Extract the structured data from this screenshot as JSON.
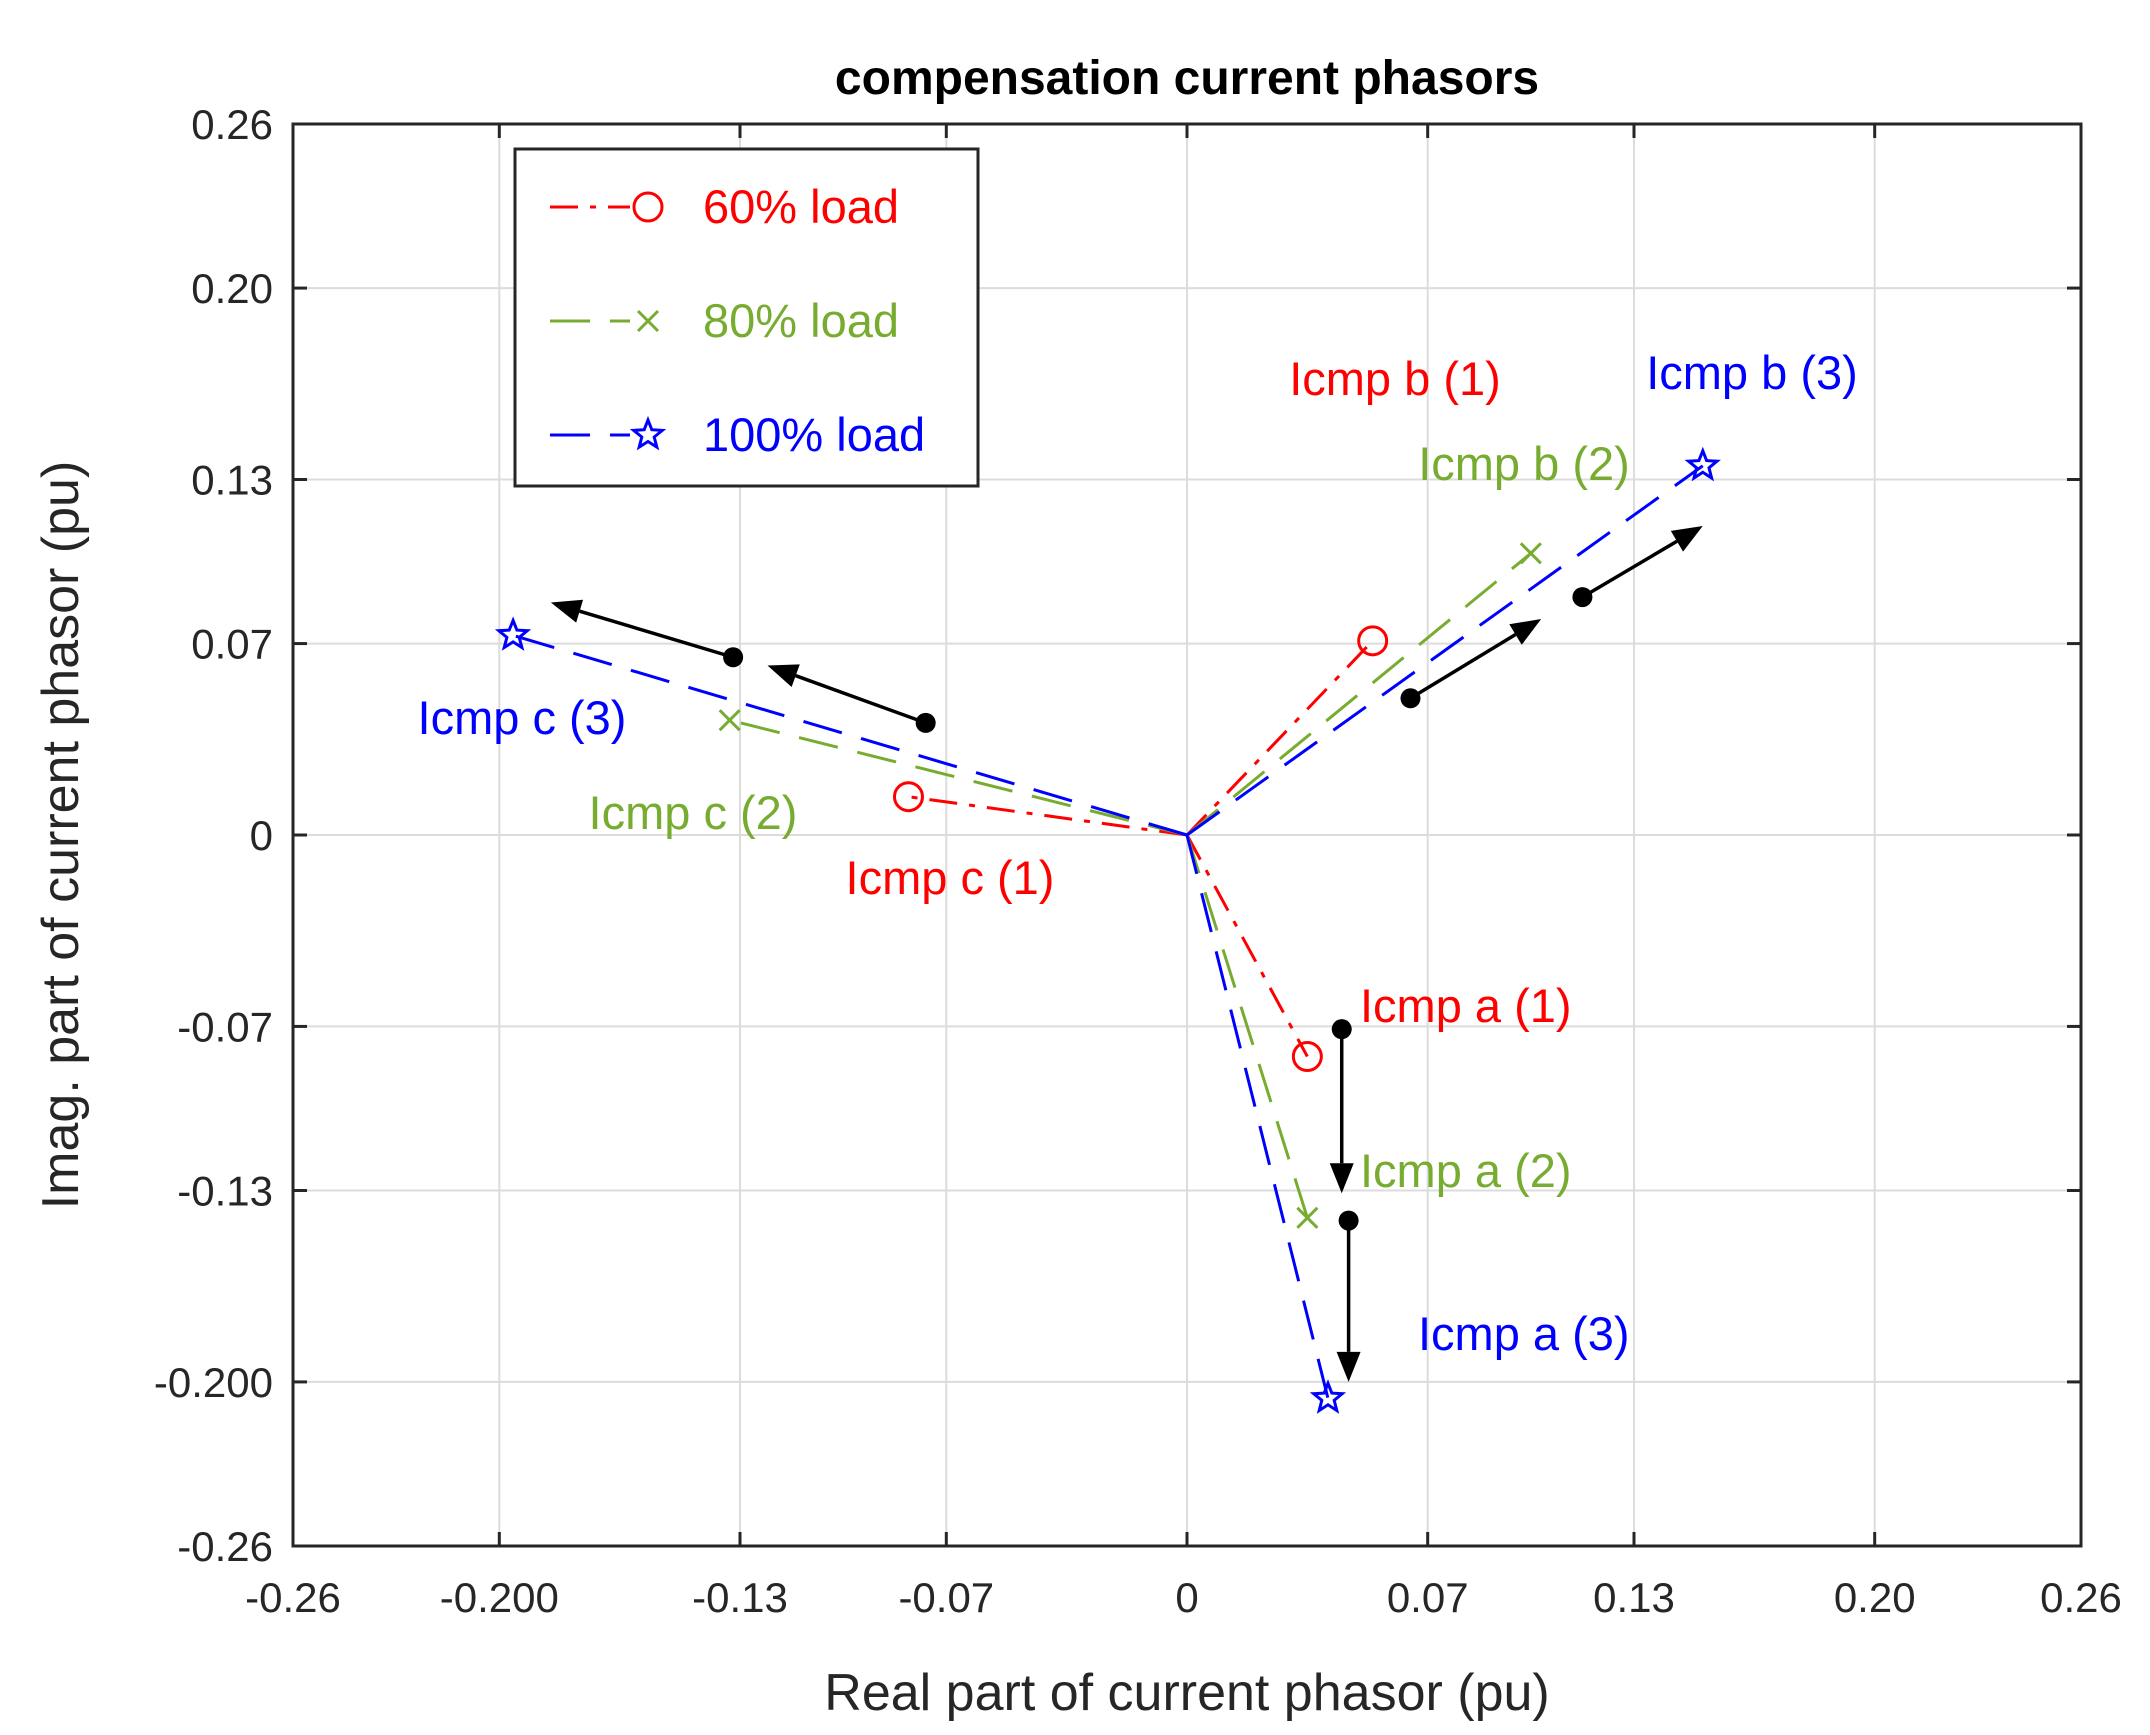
{
  "chart_data": {
    "type": "line",
    "title": "compensation current phasors",
    "xlabel": "Real part of current phasor (pu)",
    "ylabel": "Imag. part of current phasor (pu)",
    "xlim": [
      -0.26,
      0.26
    ],
    "ylim": [
      -0.26,
      0.26
    ],
    "grid": true,
    "legend_position": "top-left",
    "x_ticks": [
      -0.26,
      -0.2,
      -0.13,
      -0.07,
      0,
      0.07,
      0.13,
      0.2,
      0.26
    ],
    "x_tick_labels": [
      "-0.26",
      "-0.200",
      "-0.13",
      "-0.07",
      "0",
      "0.07",
      "0.13",
      "0.20",
      "0.26"
    ],
    "y_ticks": [
      0.26,
      0.2,
      0.13,
      0.07,
      0,
      -0.07,
      -0.13,
      -0.2,
      -0.26
    ],
    "y_tick_labels": [
      "0.26",
      "0.20",
      "0.13",
      "0.07",
      "0",
      "-0.07",
      "-0.13",
      "-0.200",
      "-0.26"
    ],
    "series": [
      {
        "name": "60% load",
        "color": "#ff0000",
        "line_style": "dash-dot",
        "marker": "circle",
        "phasors": [
          {
            "label": "Icmp a (1)",
            "x": 0.035,
            "y": -0.081
          },
          {
            "label": "Icmp b (1)",
            "x": 0.054,
            "y": 0.071
          },
          {
            "label": "Icmp c (1)",
            "x": -0.081,
            "y": 0.014
          }
        ]
      },
      {
        "name": "80% load",
        "color": "#77ac30",
        "line_style": "dashed",
        "marker": "x",
        "phasors": [
          {
            "label": "Icmp a (2)",
            "x": 0.035,
            "y": -0.14
          },
          {
            "label": "Icmp b (2)",
            "x": 0.1,
            "y": 0.103
          },
          {
            "label": "Icmp c (2)",
            "x": -0.133,
            "y": 0.042
          }
        ]
      },
      {
        "name": "100% load",
        "color": "#0000ff",
        "line_style": "dashed",
        "marker": "star",
        "phasors": [
          {
            "label": "Icmp a (3)",
            "x": 0.041,
            "y": -0.206
          },
          {
            "label": "Icmp b (3)",
            "x": 0.15,
            "y": 0.135
          },
          {
            "label": "Icmp c (3)",
            "x": -0.196,
            "y": 0.073
          }
        ]
      }
    ],
    "annotation_arrows": [
      {
        "from": [
          -0.076,
          0.041
        ],
        "to": [
          -0.122,
          0.062
        ]
      },
      {
        "from": [
          -0.132,
          0.065
        ],
        "to": [
          -0.185,
          0.085
        ]
      },
      {
        "from": [
          0.065,
          0.05
        ],
        "to": [
          0.103,
          0.079
        ]
      },
      {
        "from": [
          0.115,
          0.087
        ],
        "to": [
          0.15,
          0.113
        ]
      },
      {
        "from": [
          0.045,
          -0.071
        ],
        "to": [
          0.045,
          -0.131
        ]
      },
      {
        "from": [
          0.047,
          -0.141
        ],
        "to": [
          0.047,
          -0.2
        ]
      }
    ]
  }
}
